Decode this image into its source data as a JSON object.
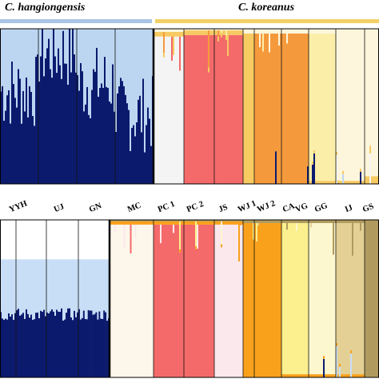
{
  "headers": {
    "left_species": "C. hangiongensis",
    "right_species": "C. koreanus",
    "left_bar_color": "#aac4e6",
    "right_bar_color": "#f2d068"
  },
  "population_labels": [
    "YYH",
    "UJ",
    "GN",
    "MC",
    "PC 1",
    "PC 2",
    "JS",
    "WJ 1",
    "WJ 2",
    "CA",
    "VG",
    "GG",
    "IJ",
    "GS"
  ],
  "chart_data": [
    {
      "type": "stacked-bar",
      "panel": "top",
      "clusters": [
        {
          "name": "",
          "color": "#0c1a6e"
        },
        {
          "name": "",
          "color": "#bcd6f2"
        },
        {
          "name": "",
          "color": "#f4f4f4"
        },
        {
          "name": "",
          "color": "#f46a6a"
        },
        {
          "name": "",
          "color": "#f7ca62"
        },
        {
          "name": "",
          "color": "#f59a3c"
        },
        {
          "name": "",
          "color": "#fbeea8"
        },
        {
          "name": "",
          "color": "#fdf6dc"
        }
      ],
      "groups": [
        {
          "label": "",
          "proportions": [
            0.6,
            0.4,
            0,
            0,
            0,
            0,
            0,
            0
          ]
        },
        {
          "label": "",
          "proportions": [
            0.85,
            0.15,
            0,
            0,
            0,
            0,
            0,
            0
          ]
        },
        {
          "label": "",
          "proportions": [
            0.65,
            0.35,
            0,
            0,
            0,
            0,
            0,
            0
          ]
        },
        {
          "label": "",
          "proportions": [
            0.45,
            0.55,
            0,
            0,
            0,
            0,
            0,
            0
          ]
        },
        {
          "label": "PC 1",
          "proportions": [
            0,
            0,
            0.95,
            0,
            0.03,
            0,
            0,
            0.02
          ]
        },
        {
          "label": "PC 2",
          "proportions": [
            0,
            0,
            0,
            0.96,
            0.03,
            0,
            0,
            0.01
          ]
        },
        {
          "label": "JS",
          "proportions": [
            0,
            0,
            0,
            0.96,
            0.03,
            0,
            0,
            0.01
          ]
        },
        {
          "label": "WJ 1",
          "proportions": [
            0,
            0,
            0,
            0,
            0.97,
            0,
            0,
            0.03
          ]
        },
        {
          "label": "WJ 2",
          "proportions": [
            0,
            0,
            0,
            0,
            0,
            0.97,
            0,
            0.03
          ]
        },
        {
          "label": "CA",
          "proportions": [
            0,
            0,
            0,
            0,
            0,
            0.97,
            0,
            0.03
          ]
        },
        {
          "label": "GG",
          "proportions": [
            0,
            0,
            0,
            0,
            0.02,
            0,
            0.95,
            0.03
          ]
        },
        {
          "label": "IJ",
          "proportions": [
            0,
            0,
            0,
            0,
            0.02,
            0,
            0,
            0.98
          ]
        },
        {
          "label": "GS",
          "proportions": [
            0,
            0,
            0,
            0,
            0.05,
            0,
            0,
            0.95
          ]
        }
      ],
      "ylim": [
        0,
        1
      ]
    },
    {
      "type": "stacked-bar",
      "panel": "bottom",
      "clusters": [
        {
          "name": "",
          "color": "#0c1a6e"
        },
        {
          "name": "",
          "color": "#c8def6"
        },
        {
          "name": "",
          "color": "#ffffff"
        },
        {
          "name": "",
          "color": "#fdf6ea"
        },
        {
          "name": "",
          "color": "#f46a6a"
        },
        {
          "name": "",
          "color": "#fbe8ec"
        },
        {
          "name": "",
          "color": "#f9a11b"
        },
        {
          "name": "",
          "color": "#fbef8e"
        },
        {
          "name": "",
          "color": "#fdf7cf"
        },
        {
          "name": "",
          "color": "#e4d095"
        },
        {
          "name": "",
          "color": "#b09a5e"
        }
      ],
      "groups": [
        {
          "label": "",
          "proportions": [
            0.4,
            0.35,
            0.25,
            0,
            0,
            0,
            0,
            0,
            0,
            0,
            0
          ]
        },
        {
          "label": "",
          "proportions": [
            0.4,
            0.35,
            0.25,
            0,
            0,
            0,
            0,
            0,
            0,
            0,
            0
          ]
        },
        {
          "label": "",
          "proportions": [
            0.4,
            0.35,
            0.25,
            0,
            0,
            0,
            0,
            0,
            0,
            0,
            0
          ]
        },
        {
          "label": "",
          "proportions": [
            0.4,
            0.35,
            0.25,
            0,
            0,
            0,
            0,
            0,
            0,
            0,
            0
          ]
        },
        {
          "label": "",
          "proportions": [
            0,
            0,
            0,
            0.97,
            0,
            0,
            0.02,
            0,
            0,
            0,
            0.01
          ]
        },
        {
          "label": "",
          "proportions": [
            0,
            0,
            0,
            0,
            0.97,
            0,
            0.02,
            0,
            0,
            0,
            0.01
          ]
        },
        {
          "label": "",
          "proportions": [
            0,
            0,
            0,
            0,
            0.97,
            0,
            0.02,
            0,
            0,
            0,
            0.01
          ]
        },
        {
          "label": "",
          "proportions": [
            0,
            0,
            0,
            0,
            0,
            0.97,
            0.02,
            0,
            0,
            0,
            0.01
          ]
        },
        {
          "label": "",
          "proportions": [
            0,
            0,
            0,
            0,
            0,
            0,
            0.98,
            0,
            0,
            0,
            0.02
          ]
        },
        {
          "label": "",
          "proportions": [
            0,
            0,
            0,
            0,
            0,
            0,
            0.98,
            0,
            0,
            0,
            0.02
          ]
        },
        {
          "label": "",
          "proportions": [
            0,
            0,
            0,
            0,
            0,
            0,
            0.02,
            0.96,
            0,
            0,
            0.02
          ]
        },
        {
          "label": "",
          "proportions": [
            0,
            0,
            0,
            0,
            0,
            0,
            0.02,
            0,
            0.96,
            0,
            0.02
          ]
        },
        {
          "label": "",
          "proportions": [
            0,
            0,
            0,
            0,
            0,
            0,
            0.02,
            0,
            0,
            0.96,
            0.02
          ]
        },
        {
          "label": "",
          "proportions": [
            0,
            0,
            0,
            0,
            0,
            0,
            0,
            0,
            0,
            0,
            1.0
          ]
        }
      ],
      "ylim": [
        0,
        1
      ]
    }
  ]
}
